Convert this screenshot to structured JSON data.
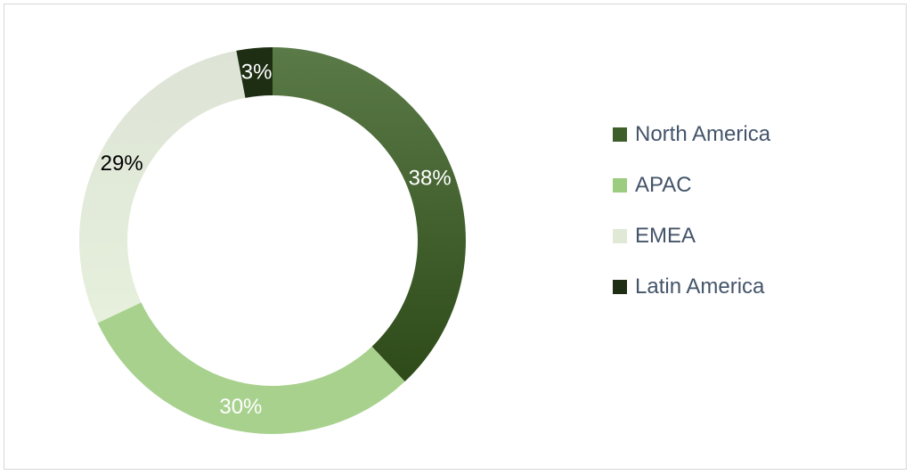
{
  "chart_data": {
    "type": "pie",
    "donut": true,
    "title": "",
    "legend_position": "right",
    "slices": [
      {
        "name": "North America",
        "value": 38,
        "label": "38%",
        "color": "#3f5f2a",
        "gradient": [
          "#5a7a48",
          "#2d4a18"
        ],
        "label_color": "#ffffff"
      },
      {
        "name": "APAC",
        "value": 30,
        "label": "30%",
        "color": "#9ccc7f",
        "gradient": [
          "#a8d18e",
          "#a8d18e"
        ],
        "label_color": "#ffffff"
      },
      {
        "name": "EMEA",
        "value": 29,
        "label": "29%",
        "color": "#dfe9d6",
        "gradient": [
          "#dde3d6",
          "#e6f0dc"
        ],
        "label_color": "#000000"
      },
      {
        "name": "Latin America",
        "value": 3,
        "label": "3%",
        "color": "#1e2e13",
        "gradient": [
          "#1e2e13",
          "#1e2e13"
        ],
        "label_color": "#ffffff"
      }
    ]
  }
}
